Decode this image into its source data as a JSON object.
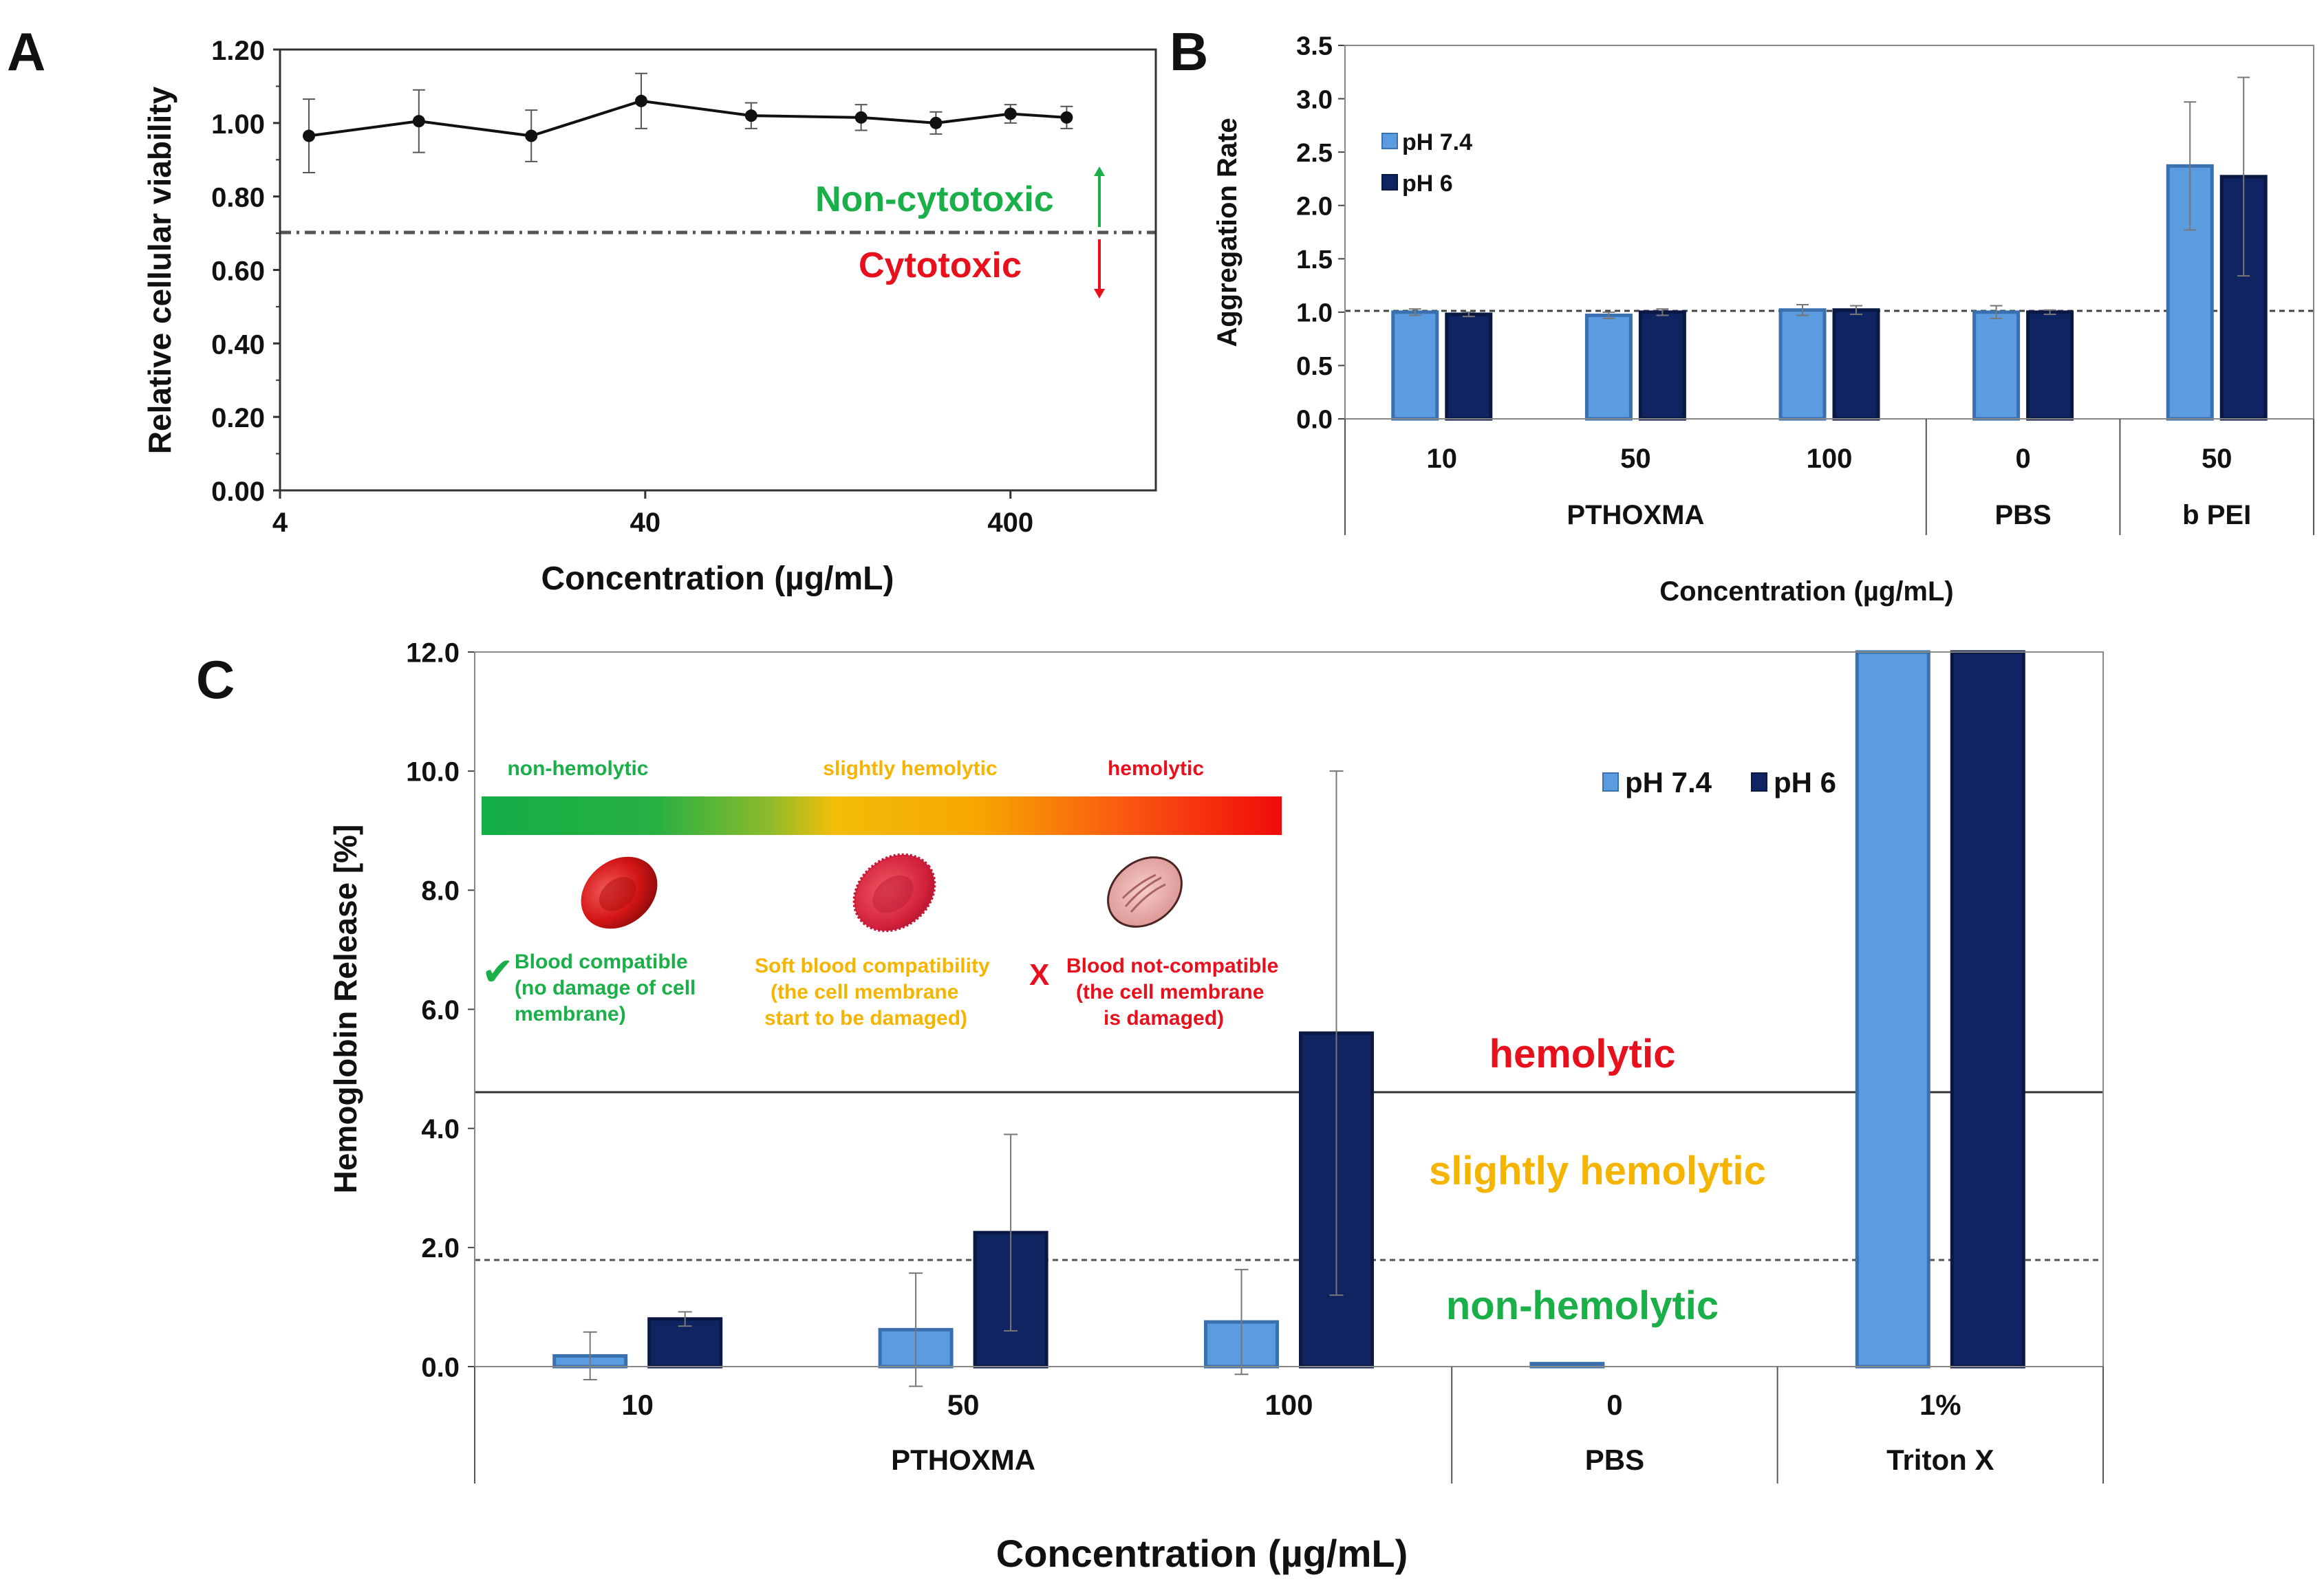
{
  "panels": {
    "a": "A",
    "b": "B",
    "c": "C"
  },
  "colors": {
    "ph74": "#5b9be0",
    "ph74_edge": "#3a6fb0",
    "ph6": "#0f2460",
    "ph6_edge": "#0a1844",
    "green": "#1aaf48",
    "amber": "#f4b400",
    "red": "#e8101c"
  },
  "chart_data": [
    {
      "id": "A",
      "type": "line",
      "xlabel": "Concentration (µg/mL)",
      "ylabel": "Relative cellular viability",
      "xscale": "log",
      "xticks": [
        "4",
        "40",
        "400"
      ],
      "xlim": [
        4,
        1000
      ],
      "ylim": [
        0,
        1.2
      ],
      "yticks": [
        "0.00",
        "0.20",
        "0.40",
        "0.60",
        "0.80",
        "1.00",
        "1.20"
      ],
      "series": [
        {
          "name": "viability",
          "x": [
            4.8,
            9.6,
            19.5,
            39,
            78,
            156,
            250,
            400,
            570
          ],
          "values": [
            0.965,
            1.005,
            0.965,
            1.06,
            1.02,
            1.015,
            1.0,
            1.025,
            1.015
          ],
          "errors": [
            0.1,
            0.085,
            0.07,
            0.075,
            0.035,
            0.035,
            0.03,
            0.025,
            0.03
          ]
        }
      ],
      "threshold": 0.7,
      "annotations": {
        "above": "Non-cytotoxic",
        "below": "Cytotoxic"
      }
    },
    {
      "id": "B",
      "type": "bar",
      "ylabel": "Aggregation Rate",
      "xlabel": "Concentration (µg/mL)",
      "ylim": [
        0,
        3.5
      ],
      "yticks": [
        "0.0",
        "0.5",
        "1.0",
        "1.5",
        "2.0",
        "2.5",
        "3.0",
        "3.5"
      ],
      "categories": [
        "10",
        "50",
        "100",
        "0",
        "50"
      ],
      "groups": [
        {
          "label": "PTHOXMA",
          "span": 3
        },
        {
          "label": "PBS",
          "span": 1
        },
        {
          "label": "b PEI",
          "span": 1
        }
      ],
      "series": [
        {
          "name": "pH 7.4",
          "values": [
            1.0,
            0.97,
            1.02,
            1.0,
            2.37
          ],
          "errors": [
            0.03,
            0.03,
            0.05,
            0.06,
            0.6
          ]
        },
        {
          "name": "pH 6",
          "values": [
            0.98,
            1.0,
            1.02,
            1.0,
            2.27
          ],
          "errors": [
            0.02,
            0.03,
            0.04,
            0.02,
            0.93
          ]
        }
      ],
      "reference_line": 1.0
    },
    {
      "id": "C",
      "type": "bar",
      "ylabel": "Hemoglobin Release [%]",
      "xlabel": "Concentration (µg/mL)",
      "ylim": [
        0,
        12
      ],
      "yticks": [
        "0.0",
        "2.0",
        "4.0",
        "6.0",
        "8.0",
        "10.0",
        "12.0"
      ],
      "categories": [
        "10",
        "50",
        "100",
        "0",
        "1%"
      ],
      "groups": [
        {
          "label": "PTHOXMA",
          "span": 3
        },
        {
          "label": "PBS",
          "span": 1
        },
        {
          "label": "Triton X",
          "span": 1
        }
      ],
      "series": [
        {
          "name": "pH 7.4",
          "values": [
            0.18,
            0.62,
            0.75,
            0.05,
            12.0
          ],
          "errors": [
            0.4,
            0.95,
            0.88,
            0.0,
            0.0
          ]
        },
        {
          "name": "pH 6",
          "values": [
            0.8,
            2.25,
            5.6,
            0.0,
            12.0
          ],
          "errors": [
            0.12,
            1.65,
            4.4,
            0.0,
            0.0
          ]
        }
      ],
      "thresholds": [
        {
          "value": 1.8,
          "style": "dashed"
        },
        {
          "value": 4.6,
          "style": "solid"
        }
      ],
      "zone_labels": [
        "non-hemolytic",
        "slightly hemolytic",
        "hemolytic"
      ],
      "scale_bar": {
        "labels": [
          "non-hemolytic",
          "slightly hemolytic",
          "hemolytic"
        ]
      },
      "cells": [
        {
          "mark": "✔",
          "lines": [
            "Blood compatible",
            "(no damage of cell",
            "membrane)"
          ]
        },
        {
          "mark": "",
          "lines": [
            "Soft blood compatibility",
            "(the cell membrane",
            "start to be damaged)"
          ]
        },
        {
          "mark": "X",
          "lines": [
            "Blood not-compatible",
            "(the cell membrane",
            "is damaged)"
          ]
        }
      ]
    }
  ]
}
